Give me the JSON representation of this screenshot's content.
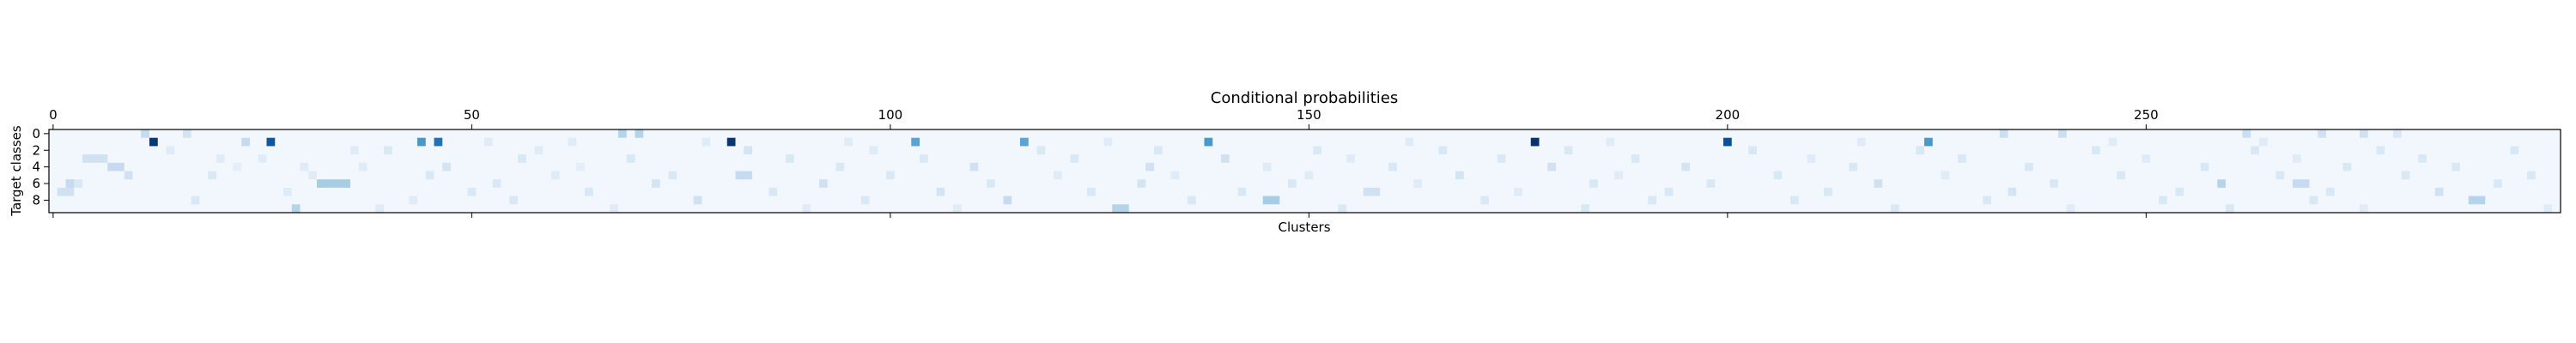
{
  "chart_data": {
    "type": "heatmap",
    "title": "Conditional probabilities",
    "xlabel": "Clusters",
    "ylabel": "Target classes",
    "colormap": "Blues",
    "value_range": [
      0,
      1
    ],
    "n_cols": 300,
    "n_rows": 10,
    "xlim": [
      -0.5,
      299.5
    ],
    "ylim": [
      9.5,
      -0.5
    ],
    "x_ticks": [
      0,
      50,
      100,
      150,
      200,
      250
    ],
    "x_tick_labels": [
      "0",
      "50",
      "100",
      "150",
      "200",
      "250"
    ],
    "x_ticks_position": "top",
    "y_ticks": [
      0,
      2,
      4,
      6,
      8
    ],
    "y_tick_labels": [
      "0",
      "2",
      "4",
      "6",
      "8"
    ],
    "base_value": 0.03,
    "cells": [
      [
        0,
        11,
        0.25
      ],
      [
        1,
        12,
        0.97
      ],
      [
        0,
        16,
        0.18
      ],
      [
        1,
        23,
        0.25
      ],
      [
        1,
        26,
        0.85
      ],
      [
        1,
        44,
        0.6
      ],
      [
        1,
        46,
        0.75
      ],
      [
        1,
        81,
        0.98
      ],
      [
        1,
        103,
        0.55
      ],
      [
        1,
        116,
        0.55
      ],
      [
        1,
        138,
        0.6
      ],
      [
        1,
        177,
        0.99
      ],
      [
        1,
        200,
        0.88
      ],
      [
        1,
        224,
        0.6
      ],
      [
        0,
        68,
        0.3
      ],
      [
        0,
        70,
        0.3
      ],
      [
        0,
        233,
        0.22
      ],
      [
        0,
        240,
        0.22
      ],
      [
        0,
        262,
        0.22
      ],
      [
        0,
        271,
        0.2
      ],
      [
        0,
        276,
        0.2
      ],
      [
        0,
        280,
        0.15
      ],
      [
        3,
        4,
        0.2
      ],
      [
        3,
        5,
        0.2
      ],
      [
        3,
        6,
        0.2
      ],
      [
        4,
        7,
        0.25
      ],
      [
        4,
        8,
        0.25
      ],
      [
        5,
        9,
        0.2
      ],
      [
        6,
        2,
        0.25
      ],
      [
        6,
        3,
        0.15
      ],
      [
        7,
        1,
        0.2
      ],
      [
        7,
        2,
        0.2
      ],
      [
        2,
        14,
        0.12
      ],
      [
        5,
        19,
        0.15
      ],
      [
        8,
        17,
        0.15
      ],
      [
        4,
        22,
        0.1
      ],
      [
        3,
        25,
        0.12
      ],
      [
        7,
        28,
        0.12
      ],
      [
        9,
        29,
        0.3
      ],
      [
        5,
        31,
        0.12
      ],
      [
        6,
        32,
        0.35
      ],
      [
        6,
        33,
        0.35
      ],
      [
        6,
        34,
        0.35
      ],
      [
        6,
        35,
        0.35
      ],
      [
        4,
        37,
        0.12
      ],
      [
        2,
        40,
        0.15
      ],
      [
        9,
        39,
        0.12
      ],
      [
        8,
        43,
        0.12
      ],
      [
        5,
        45,
        0.15
      ],
      [
        4,
        47,
        0.18
      ],
      [
        7,
        50,
        0.15
      ],
      [
        6,
        53,
        0.15
      ],
      [
        3,
        56,
        0.15
      ],
      [
        8,
        55,
        0.15
      ],
      [
        2,
        58,
        0.12
      ],
      [
        5,
        60,
        0.12
      ],
      [
        4,
        63,
        0.1
      ],
      [
        7,
        64,
        0.15
      ],
      [
        9,
        67,
        0.12
      ],
      [
        3,
        69,
        0.15
      ],
      [
        6,
        72,
        0.18
      ],
      [
        5,
        74,
        0.15
      ],
      [
        8,
        77,
        0.2
      ],
      [
        2,
        83,
        0.18
      ],
      [
        5,
        82,
        0.25
      ],
      [
        5,
        83,
        0.25
      ],
      [
        7,
        86,
        0.15
      ],
      [
        3,
        88,
        0.15
      ],
      [
        9,
        90,
        0.12
      ],
      [
        6,
        92,
        0.2
      ],
      [
        4,
        94,
        0.15
      ],
      [
        8,
        97,
        0.15
      ],
      [
        2,
        98,
        0.12
      ],
      [
        5,
        100,
        0.15
      ],
      [
        3,
        104,
        0.15
      ],
      [
        7,
        106,
        0.18
      ],
      [
        9,
        108,
        0.12
      ],
      [
        4,
        110,
        0.2
      ],
      [
        6,
        112,
        0.15
      ],
      [
        8,
        114,
        0.25
      ],
      [
        2,
        118,
        0.15
      ],
      [
        5,
        120,
        0.12
      ],
      [
        3,
        122,
        0.15
      ],
      [
        7,
        124,
        0.15
      ],
      [
        9,
        127,
        0.3
      ],
      [
        9,
        128,
        0.3
      ],
      [
        6,
        130,
        0.18
      ],
      [
        4,
        131,
        0.2
      ],
      [
        2,
        132,
        0.15
      ],
      [
        5,
        134,
        0.12
      ],
      [
        8,
        136,
        0.15
      ],
      [
        3,
        140,
        0.2
      ],
      [
        7,
        142,
        0.15
      ],
      [
        4,
        145,
        0.12
      ],
      [
        6,
        148,
        0.15
      ],
      [
        8,
        145,
        0.35
      ],
      [
        8,
        146,
        0.35
      ],
      [
        5,
        150,
        0.12
      ],
      [
        2,
        151,
        0.15
      ],
      [
        9,
        154,
        0.15
      ],
      [
        3,
        155,
        0.12
      ],
      [
        7,
        157,
        0.2
      ],
      [
        7,
        158,
        0.2
      ],
      [
        4,
        160,
        0.15
      ],
      [
        6,
        163,
        0.12
      ],
      [
        2,
        166,
        0.15
      ],
      [
        5,
        168,
        0.18
      ],
      [
        8,
        171,
        0.15
      ],
      [
        3,
        173,
        0.15
      ],
      [
        7,
        175,
        0.12
      ],
      [
        4,
        179,
        0.2
      ],
      [
        2,
        181,
        0.15
      ],
      [
        6,
        184,
        0.15
      ],
      [
        9,
        183,
        0.15
      ],
      [
        5,
        187,
        0.12
      ],
      [
        3,
        189,
        0.15
      ],
      [
        8,
        191,
        0.15
      ],
      [
        7,
        193,
        0.15
      ],
      [
        4,
        195,
        0.18
      ],
      [
        6,
        198,
        0.15
      ],
      [
        2,
        203,
        0.15
      ],
      [
        5,
        206,
        0.15
      ],
      [
        8,
        208,
        0.15
      ],
      [
        3,
        210,
        0.12
      ],
      [
        7,
        212,
        0.15
      ],
      [
        4,
        215,
        0.15
      ],
      [
        6,
        218,
        0.2
      ],
      [
        9,
        220,
        0.15
      ],
      [
        2,
        223,
        0.15
      ],
      [
        5,
        226,
        0.12
      ],
      [
        3,
        228,
        0.15
      ],
      [
        8,
        231,
        0.15
      ],
      [
        7,
        234,
        0.18
      ],
      [
        4,
        236,
        0.15
      ],
      [
        6,
        239,
        0.15
      ],
      [
        9,
        241,
        0.12
      ],
      [
        2,
        244,
        0.15
      ],
      [
        5,
        247,
        0.15
      ],
      [
        3,
        250,
        0.12
      ],
      [
        8,
        252,
        0.15
      ],
      [
        7,
        254,
        0.15
      ],
      [
        4,
        257,
        0.15
      ],
      [
        6,
        259,
        0.3
      ],
      [
        9,
        260,
        0.15
      ],
      [
        2,
        263,
        0.15
      ],
      [
        5,
        266,
        0.15
      ],
      [
        3,
        268,
        0.12
      ],
      [
        6,
        268,
        0.25
      ],
      [
        6,
        269,
        0.25
      ],
      [
        8,
        270,
        0.15
      ],
      [
        7,
        272,
        0.15
      ],
      [
        4,
        274,
        0.15
      ],
      [
        9,
        276,
        0.12
      ],
      [
        2,
        278,
        0.15
      ],
      [
        5,
        281,
        0.15
      ],
      [
        3,
        283,
        0.15
      ],
      [
        7,
        285,
        0.2
      ],
      [
        4,
        287,
        0.15
      ],
      [
        8,
        289,
        0.3
      ],
      [
        8,
        290,
        0.3
      ],
      [
        6,
        292,
        0.15
      ],
      [
        2,
        294,
        0.15
      ],
      [
        5,
        296,
        0.15
      ],
      [
        9,
        298,
        0.12
      ],
      [
        3,
        20,
        0.12
      ],
      [
        4,
        30,
        0.12
      ],
      [
        2,
        36,
        0.12
      ],
      [
        1,
        52,
        0.12
      ],
      [
        1,
        62,
        0.12
      ],
      [
        1,
        78,
        0.12
      ],
      [
        1,
        95,
        0.12
      ],
      [
        1,
        126,
        0.12
      ],
      [
        1,
        162,
        0.12
      ],
      [
        1,
        186,
        0.12
      ],
      [
        1,
        216,
        0.12
      ],
      [
        1,
        246,
        0.12
      ],
      [
        1,
        264,
        0.12
      ]
    ]
  }
}
